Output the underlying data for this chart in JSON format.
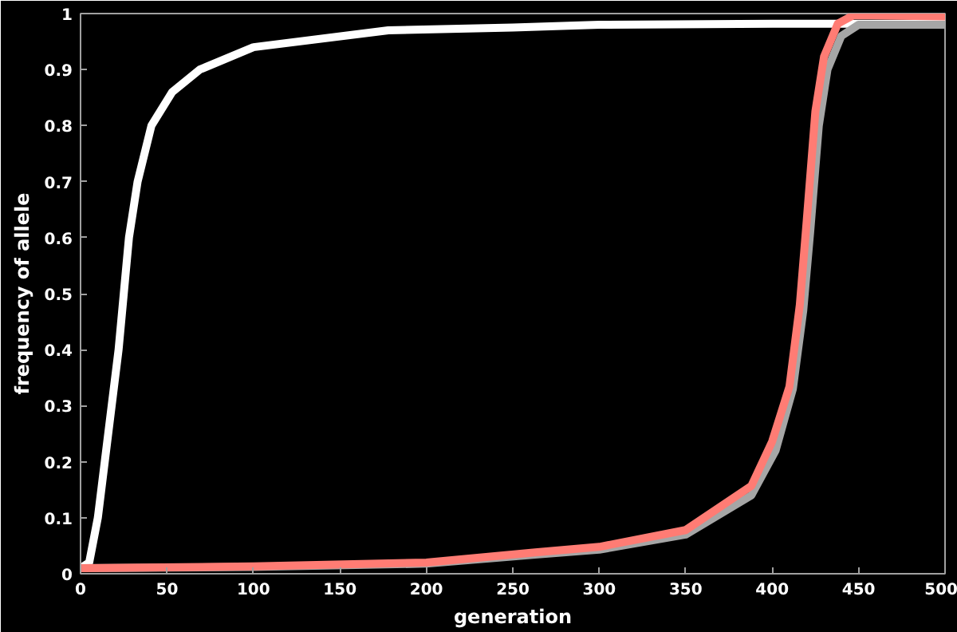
{
  "chart_data": {
    "type": "line",
    "xlabel": "generation",
    "ylabel": "frequency of allele",
    "xlim": [
      0,
      500
    ],
    "ylim": [
      0,
      1
    ],
    "xticks": [
      0,
      50,
      100,
      150,
      200,
      250,
      300,
      350,
      400,
      450,
      500
    ],
    "yticks": [
      0,
      0.1,
      0.2,
      0.3,
      0.4,
      0.5,
      0.6,
      0.7,
      0.8,
      0.9,
      1
    ],
    "grid": false,
    "marker": "none",
    "line_style": "solid",
    "series": [
      {
        "color": "#ffffff",
        "x": [
          0,
          5,
          10,
          14,
          18,
          22,
          25,
          28,
          33,
          41,
          53,
          69,
          100,
          178,
          250,
          300,
          400,
          500
        ],
        "values": [
          0.01,
          0.02,
          0.1,
          0.2,
          0.3,
          0.4,
          0.5,
          0.6,
          0.7,
          0.8,
          0.86,
          0.9,
          0.94,
          0.97,
          0.975,
          0.98,
          0.982,
          0.982
        ]
      },
      {
        "color": "#a6a6a6",
        "x": [
          0,
          100,
          200,
          263,
          300,
          350,
          388,
          402,
          412,
          418,
          422,
          427,
          432,
          440,
          450,
          500
        ],
        "values": [
          0.01,
          0.012,
          0.018,
          0.034,
          0.043,
          0.07,
          0.14,
          0.22,
          0.33,
          0.47,
          0.61,
          0.8,
          0.9,
          0.96,
          0.98,
          0.98
        ]
      },
      {
        "color": "#ff7c74",
        "x": [
          0,
          100,
          200,
          263,
          300,
          350,
          388,
          400,
          410,
          416,
          420,
          425,
          430,
          438,
          447,
          500
        ],
        "values": [
          0.01,
          0.013,
          0.02,
          0.038,
          0.048,
          0.078,
          0.157,
          0.236,
          0.334,
          0.48,
          0.63,
          0.825,
          0.923,
          0.982,
          0.997,
          0.995
        ]
      }
    ]
  }
}
